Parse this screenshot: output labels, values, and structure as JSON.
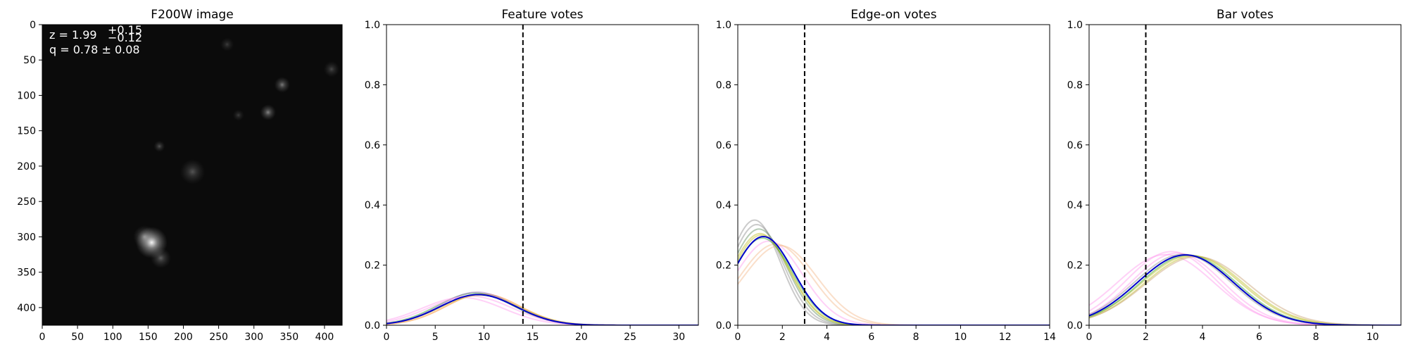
{
  "chart_data": [
    {
      "type": "image",
      "title": "F200W image",
      "xlim": [
        0,
        425
      ],
      "ylim": [
        425,
        0
      ],
      "xticks": [
        0,
        50,
        100,
        150,
        200,
        250,
        300,
        350,
        400
      ],
      "yticks": [
        0,
        50,
        100,
        150,
        200,
        250,
        300,
        350,
        400
      ],
      "annotation": {
        "z_label": "z = 1.99",
        "z_upper": "+0.15",
        "z_lower": "−0.12",
        "q_label": "q = 0.78 ± 0.08"
      },
      "sources": [
        {
          "x": 155,
          "y": 308,
          "r": 14,
          "peak": 1.0
        },
        {
          "x": 145,
          "y": 300,
          "r": 10,
          "peak": 0.45
        },
        {
          "x": 168,
          "y": 330,
          "r": 9,
          "peak": 0.35
        },
        {
          "x": 213,
          "y": 208,
          "r": 11,
          "peak": 0.3
        },
        {
          "x": 340,
          "y": 85,
          "r": 7,
          "peak": 0.45
        },
        {
          "x": 320,
          "y": 124,
          "r": 7,
          "peak": 0.5
        },
        {
          "x": 166,
          "y": 172,
          "r": 5,
          "peak": 0.3
        },
        {
          "x": 278,
          "y": 128,
          "r": 5,
          "peak": 0.2
        },
        {
          "x": 262,
          "y": 28,
          "r": 6,
          "peak": 0.2
        },
        {
          "x": 410,
          "y": 63,
          "r": 7,
          "peak": 0.25
        }
      ]
    },
    {
      "type": "line",
      "title": "Feature votes",
      "xlim": [
        0,
        32
      ],
      "ylim": [
        0,
        1
      ],
      "xticks": [
        0,
        5,
        10,
        15,
        20,
        25,
        30
      ],
      "yticks": [
        0.0,
        0.2,
        0.4,
        0.6,
        0.8,
        1.0
      ],
      "vline": 14,
      "main": {
        "color": "#0000cc",
        "mu": 9.4,
        "sigma": 3.9,
        "peak": 0.102
      },
      "series": [
        {
          "color": "#ff7f0e",
          "mu": 9.9,
          "sigma": 3.8,
          "peak": 0.104
        },
        {
          "color": "#2ca02c",
          "mu": 9.1,
          "sigma": 3.9,
          "peak": 0.107
        },
        {
          "color": "#9467bd",
          "mu": 9.3,
          "sigma": 3.8,
          "peak": 0.11
        },
        {
          "color": "#ff99ee",
          "mu": 8.6,
          "sigma": 4.2,
          "peak": 0.097
        },
        {
          "color": "#ff99ee",
          "mu": 7.8,
          "sigma": 4.2,
          "peak": 0.092
        },
        {
          "color": "#8c8c8c",
          "mu": 9.5,
          "sigma": 3.9,
          "peak": 0.103
        },
        {
          "color": "#bcbd22",
          "mu": 9.6,
          "sigma": 4.0,
          "peak": 0.1
        }
      ]
    },
    {
      "type": "line",
      "title": "Edge-on votes",
      "xlim": [
        0,
        14
      ],
      "ylim": [
        0,
        1
      ],
      "xticks": [
        0,
        2,
        4,
        6,
        8,
        10,
        12,
        14
      ],
      "yticks": [
        0.0,
        0.2,
        0.4,
        0.6,
        0.8,
        1.0
      ],
      "vline": 3,
      "main": {
        "color": "#0000cc",
        "mu": 1.15,
        "sigma": 1.35,
        "peak": 0.295
      },
      "series": [
        {
          "color": "#8c8c8c",
          "mu": 0.75,
          "sigma": 1.15,
          "peak": 0.35
        },
        {
          "color": "#8c8c8c",
          "mu": 0.85,
          "sigma": 1.2,
          "peak": 0.335
        },
        {
          "color": "#5a8a5a",
          "mu": 0.95,
          "sigma": 1.25,
          "peak": 0.32
        },
        {
          "color": "#bcbd22",
          "mu": 1.0,
          "sigma": 1.3,
          "peak": 0.305
        },
        {
          "color": "#bcbd22",
          "mu": 1.05,
          "sigma": 1.3,
          "peak": 0.3
        },
        {
          "color": "#ff99ee",
          "mu": 1.4,
          "sigma": 1.5,
          "peak": 0.28
        },
        {
          "color": "#f5b88a",
          "mu": 1.7,
          "sigma": 1.6,
          "peak": 0.27
        },
        {
          "color": "#f5b88a",
          "mu": 1.9,
          "sigma": 1.65,
          "peak": 0.265
        },
        {
          "color": "#2ca02c",
          "mu": 1.1,
          "sigma": 1.35,
          "peak": 0.29
        }
      ]
    },
    {
      "type": "line",
      "title": "Bar votes",
      "xlim": [
        0,
        11
      ],
      "ylim": [
        0,
        1
      ],
      "xticks": [
        0,
        2,
        4,
        6,
        8,
        10
      ],
      "yticks": [
        0.0,
        0.2,
        0.4,
        0.6,
        0.8,
        1.0
      ],
      "vline": 2,
      "main": {
        "color": "#0000cc",
        "mu": 3.4,
        "sigma": 1.7,
        "peak": 0.234
      },
      "series": [
        {
          "color": "#ff99ee",
          "mu": 2.9,
          "sigma": 1.6,
          "peak": 0.245
        },
        {
          "color": "#ff99ee",
          "mu": 3.1,
          "sigma": 1.6,
          "peak": 0.24
        },
        {
          "color": "#ff99ee",
          "mu": 2.7,
          "sigma": 1.7,
          "peak": 0.235
        },
        {
          "color": "#bcbd22",
          "mu": 3.6,
          "sigma": 1.75,
          "peak": 0.232
        },
        {
          "color": "#bcbd22",
          "mu": 3.7,
          "sigma": 1.75,
          "peak": 0.23
        },
        {
          "color": "#c8a070",
          "mu": 3.8,
          "sigma": 1.8,
          "peak": 0.228
        },
        {
          "color": "#2ca02c",
          "mu": 3.5,
          "sigma": 1.7,
          "peak": 0.233
        },
        {
          "color": "#8c8c8c",
          "mu": 3.3,
          "sigma": 1.7,
          "peak": 0.236
        }
      ]
    }
  ]
}
